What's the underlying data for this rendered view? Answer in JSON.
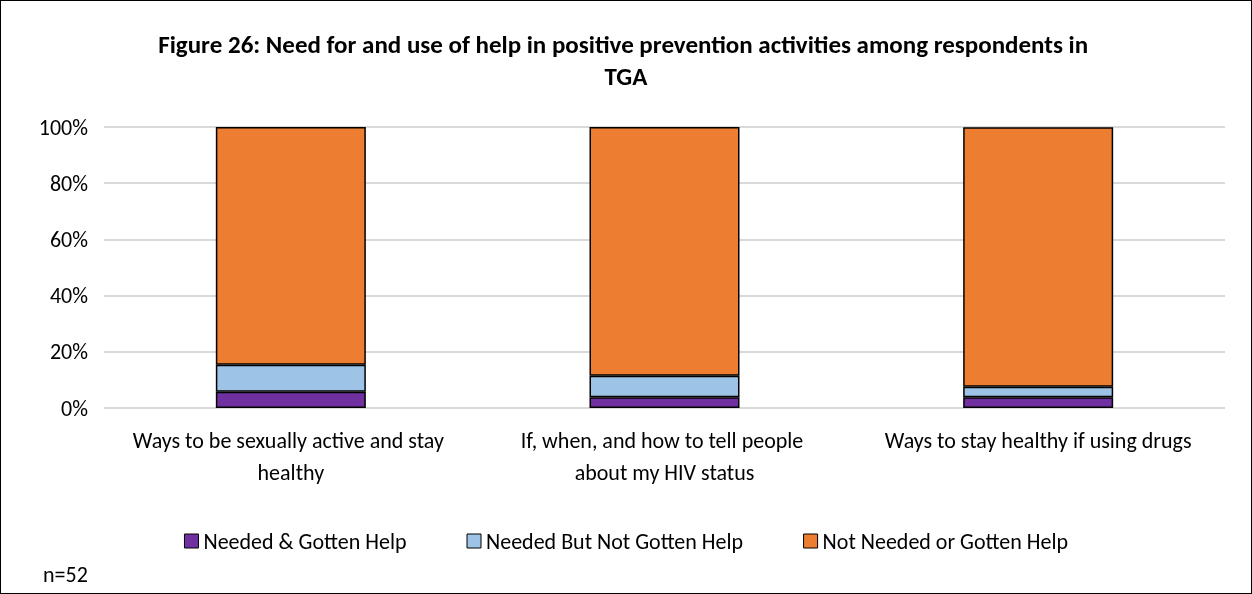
{
  "chart_data": {
    "type": "bar",
    "stacked": true,
    "title": "Figure 26: Need for and use of help in positive prevention activities among respondents in TGA",
    "categories": [
      "Ways to be sexually active and stay healthy",
      "If, when, and how to tell people about my HIV status",
      "Ways to stay healthy if using drugs"
    ],
    "series": [
      {
        "name": "Needed & Gotten Help",
        "color": "#7030a0",
        "values": [
          5.8,
          3.8,
          3.8
        ]
      },
      {
        "name": "Needed But Not Gotten Help",
        "color": "#9dc3e6",
        "values": [
          9.6,
          7.7,
          3.8
        ]
      },
      {
        "name": "Not Needed or Gotten Help",
        "color": "#ed7d31",
        "values": [
          84.6,
          88.5,
          92.3
        ]
      }
    ],
    "ylim": [
      0,
      100
    ],
    "yticks": [
      {
        "value": 0,
        "label": "0%"
      },
      {
        "value": 20,
        "label": "20%"
      },
      {
        "value": 40,
        "label": "40%"
      },
      {
        "value": 60,
        "label": "60%"
      },
      {
        "value": 80,
        "label": "80%"
      },
      {
        "value": 100,
        "label": "100%"
      }
    ],
    "grid": "y",
    "legend": "bottom",
    "annotations": [
      "n=52"
    ]
  }
}
